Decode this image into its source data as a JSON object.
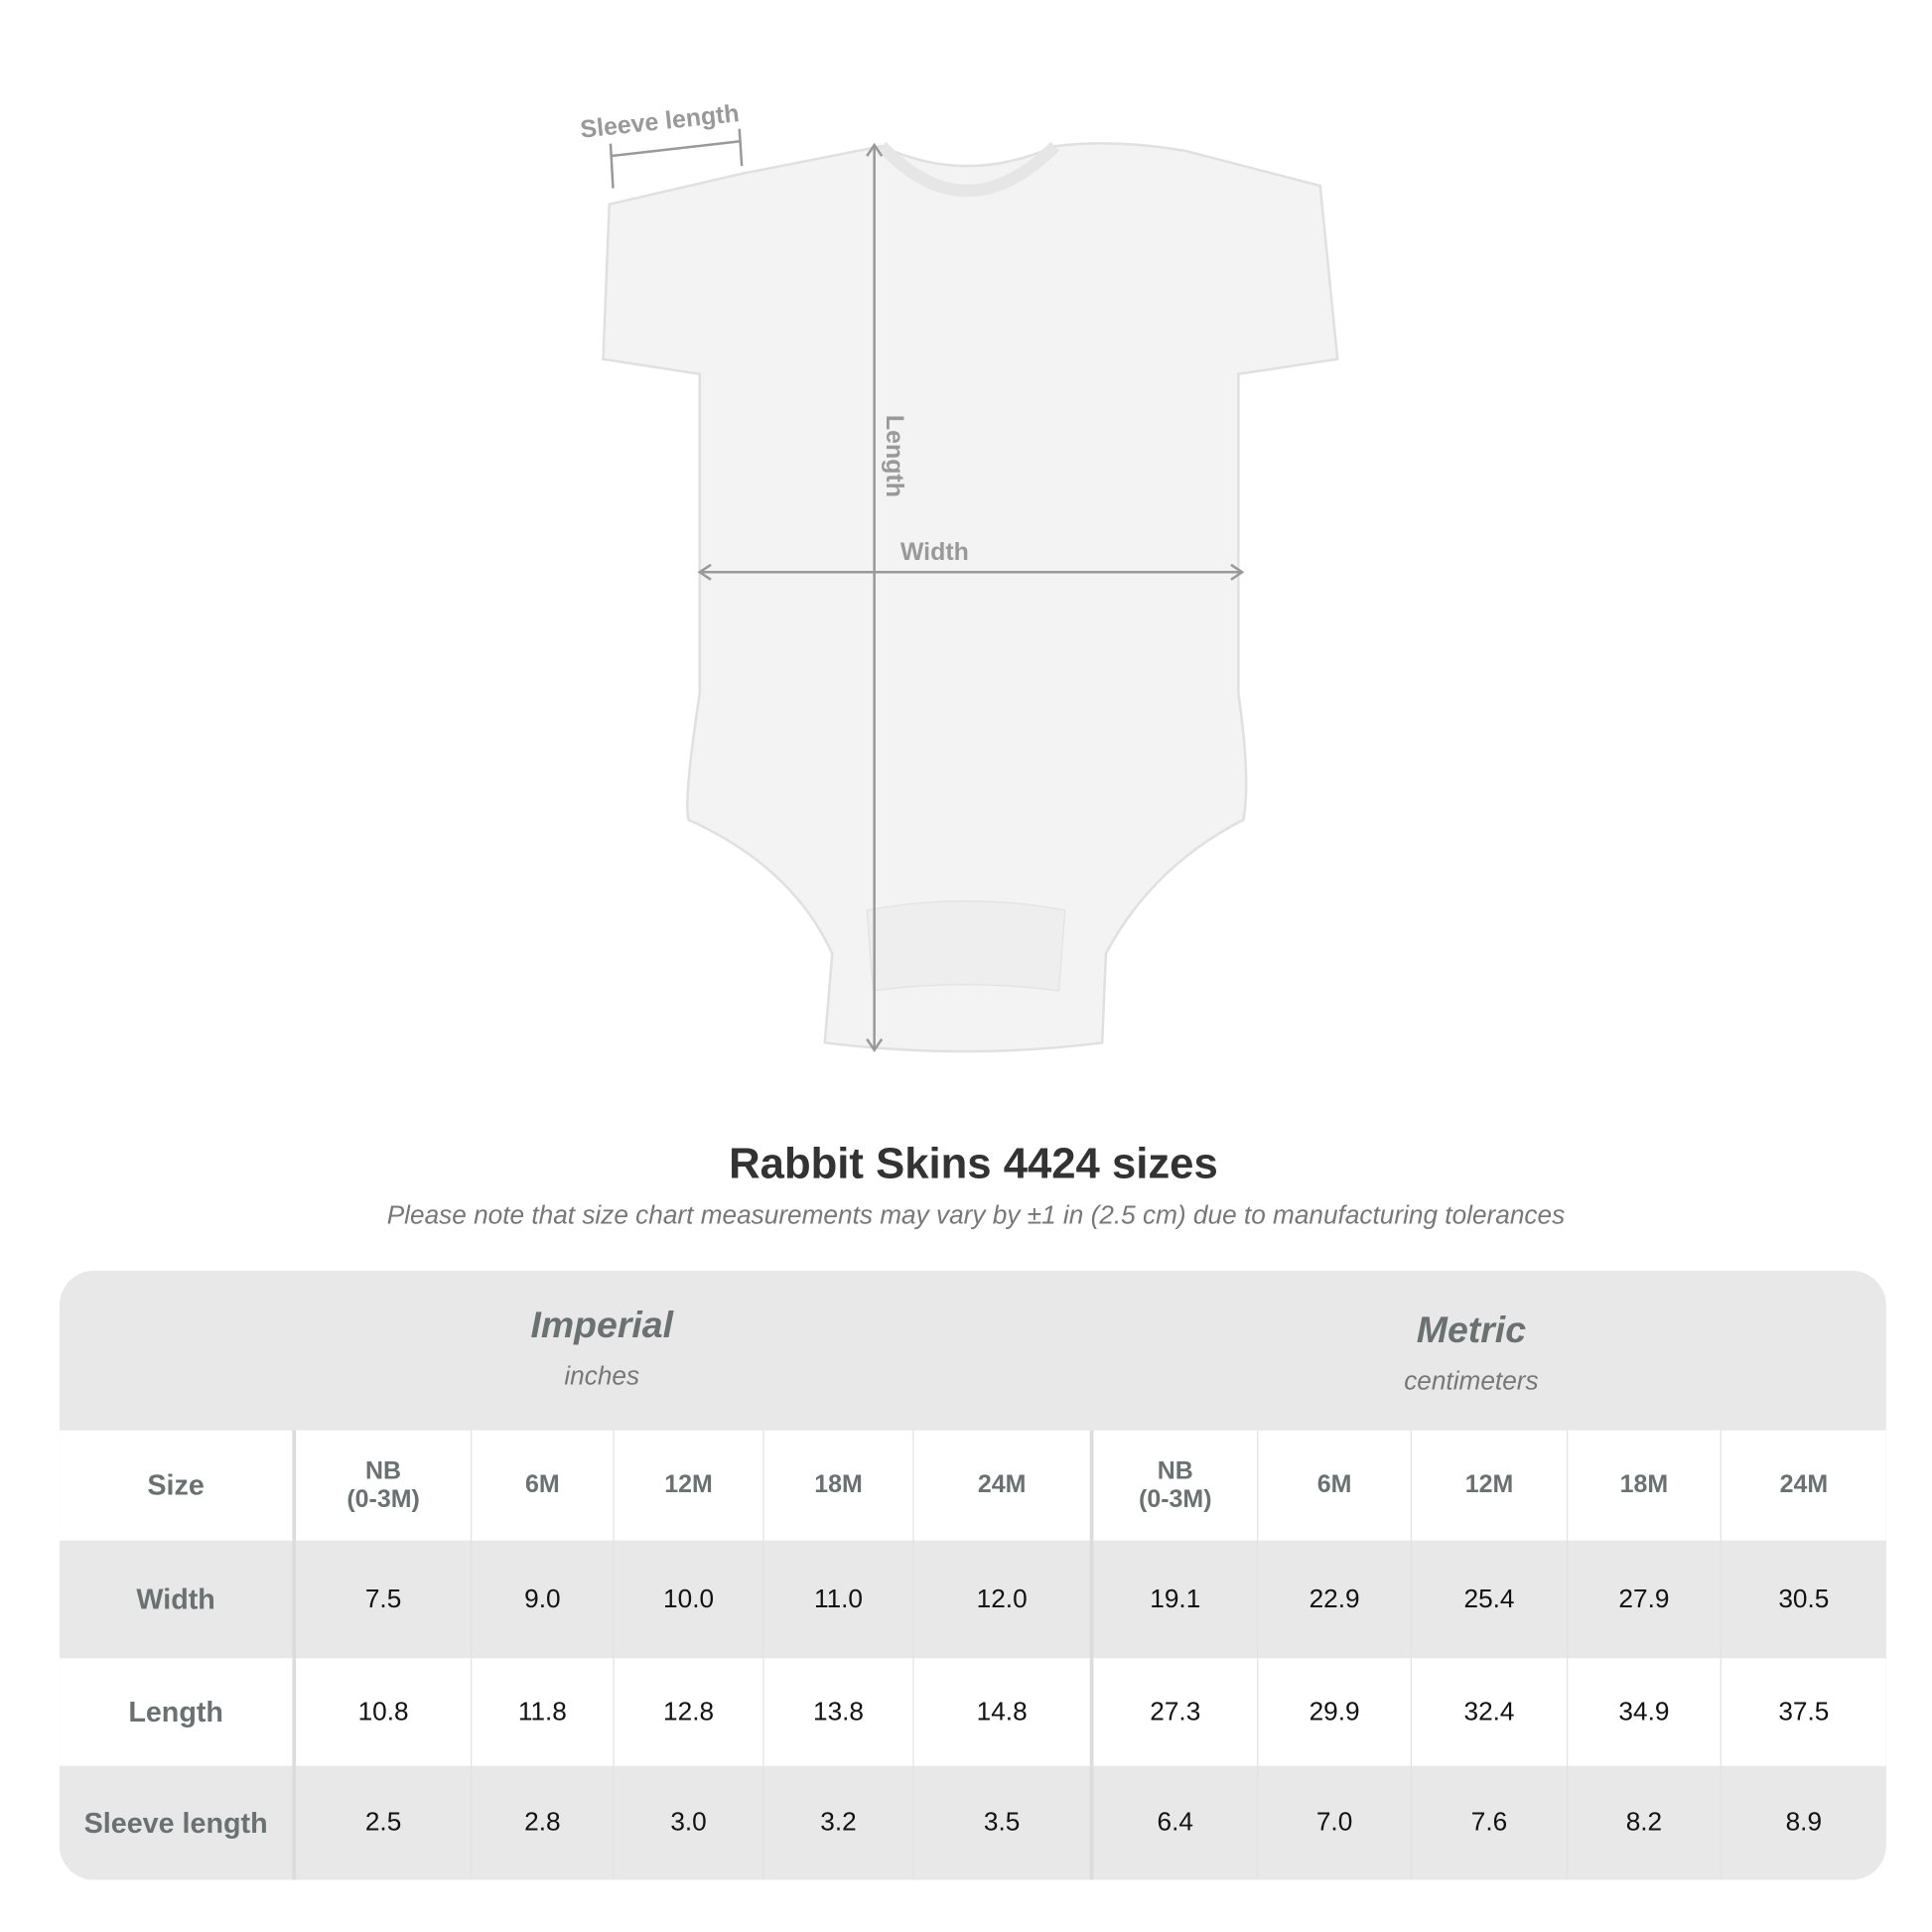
{
  "diagram": {
    "sleeve_label": "Sleeve length",
    "length_label": "Length",
    "width_label": "Width"
  },
  "title": "Rabbit Skins 4424 sizes",
  "note": "Please note that size chart measurements may vary by ±1 in (2.5 cm) due to manufacturing tolerances",
  "table": {
    "imperial": {
      "name": "Imperial",
      "unit": "inches"
    },
    "metric": {
      "name": "Metric",
      "unit": "centimeters"
    },
    "size_label": "Size",
    "sizes": [
      "NB\n(0-3M)",
      "6M",
      "12M",
      "18M",
      "24M"
    ],
    "rows": [
      {
        "label": "Width",
        "imperial": [
          "7.5",
          "9.0",
          "10.0",
          "11.0",
          "12.0"
        ],
        "metric": [
          "19.1",
          "22.9",
          "25.4",
          "27.9",
          "30.5"
        ]
      },
      {
        "label": "Length",
        "imperial": [
          "10.8",
          "11.8",
          "12.8",
          "13.8",
          "14.8"
        ],
        "metric": [
          "27.3",
          "29.9",
          "32.4",
          "34.9",
          "37.5"
        ]
      },
      {
        "label": "Sleeve length",
        "imperial": [
          "2.5",
          "2.8",
          "3.0",
          "3.2",
          "3.5"
        ],
        "metric": [
          "6.4",
          "7.0",
          "7.6",
          "8.2",
          "8.9"
        ]
      }
    ]
  }
}
